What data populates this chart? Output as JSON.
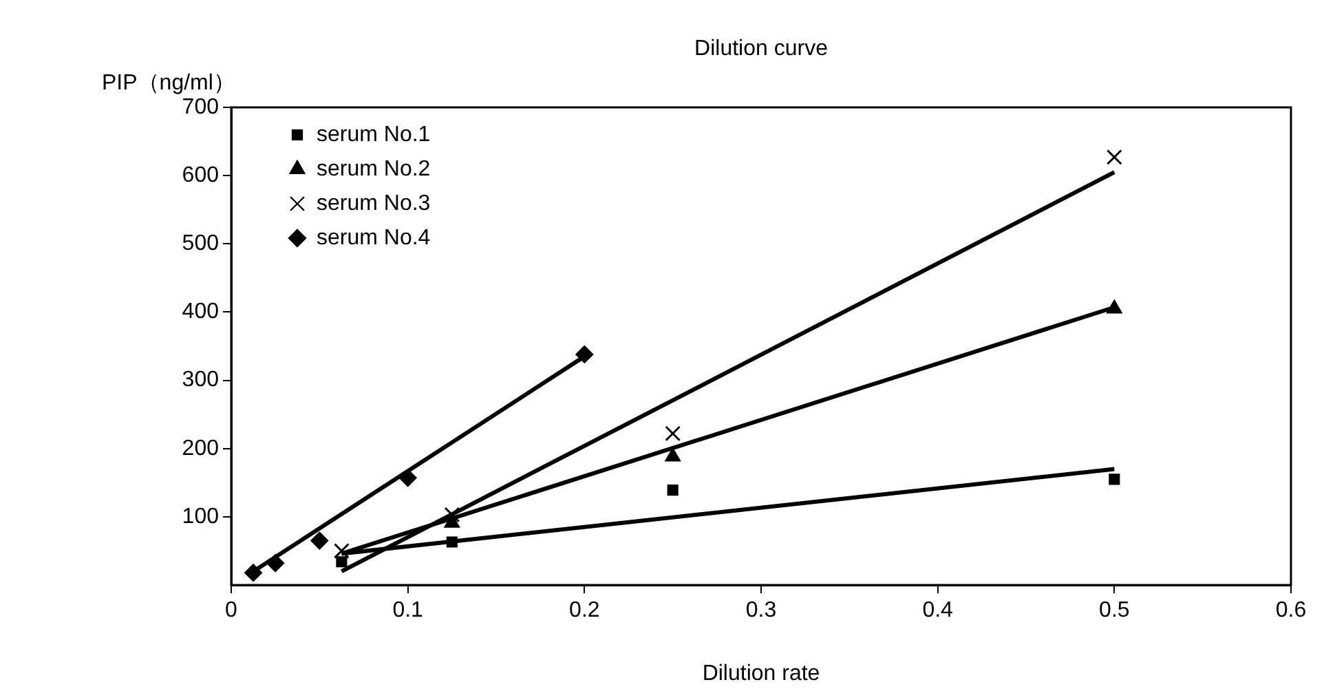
{
  "chart_data": {
    "type": "scatter",
    "title": "Dilution curve",
    "xlabel": "Dilution rate",
    "ylabel": "PIP（ng/ml）",
    "xlim": [
      0,
      0.6
    ],
    "xticks": [
      0,
      0.1,
      0.2,
      0.3,
      0.4,
      0.5,
      0.6
    ],
    "ylim": [
      0,
      700
    ],
    "yticks": [
      100,
      200,
      300,
      400,
      500,
      600,
      700
    ],
    "grid": false,
    "legend": "top left",
    "series": [
      {
        "name": "serum No.1",
        "marker": "square",
        "color": "#000000",
        "x": [
          0.0625,
          0.125,
          0.25,
          0.5
        ],
        "values": [
          34,
          63,
          139,
          155
        ]
      },
      {
        "name": "serum No.2",
        "marker": "triangle",
        "color": "#000000",
        "x": [
          0.125,
          0.25,
          0.5
        ],
        "values": [
          91,
          188,
          405
        ]
      },
      {
        "name": "serum No.3",
        "marker": "cross",
        "color": "#000000",
        "x": [
          0.0625,
          0.125,
          0.25,
          0.5
        ],
        "values": [
          50,
          103,
          222,
          627
        ]
      },
      {
        "name": "serum No.4",
        "marker": "diamond",
        "color": "#000000",
        "x": [
          0.0125,
          0.025,
          0.05,
          0.1,
          0.2
        ],
        "values": [
          18,
          32,
          65,
          157,
          338
        ]
      },
      {
        "type": "line",
        "marker": "none",
        "color": "#000000",
        "x": [
          0.0625,
          0.5
        ],
        "values": [
          46,
          170
        ]
      },
      {
        "type": "line",
        "marker": "none",
        "color": "#000000",
        "x": [
          0.0625,
          0.5
        ],
        "values": [
          46,
          407
        ]
      },
      {
        "type": "line",
        "marker": "none",
        "color": "#000000",
        "x": [
          0.0625,
          0.5
        ],
        "values": [
          20,
          605
        ]
      },
      {
        "type": "line",
        "marker": "none",
        "color": "#000000",
        "x": [
          0.0125,
          0.2
        ],
        "values": [
          20,
          335
        ]
      }
    ]
  }
}
